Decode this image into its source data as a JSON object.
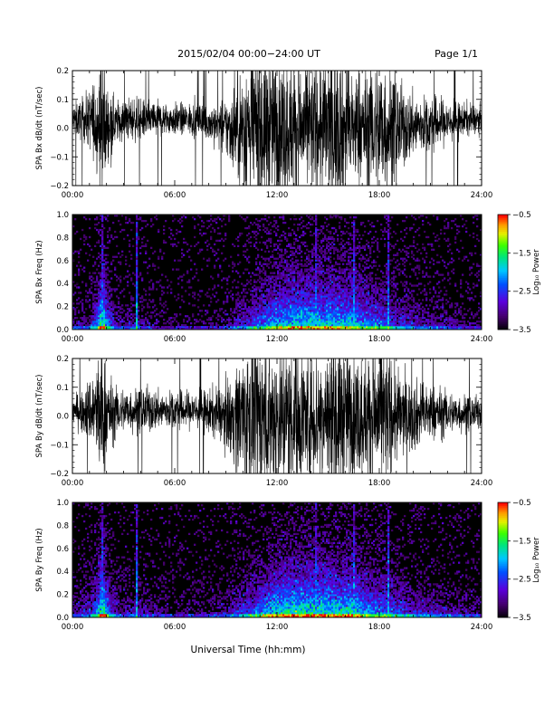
{
  "header": {
    "title": "2015/02/04  00:00−24:00 UT",
    "page": "Page 1/1"
  },
  "xaxis_title": "Universal Time (hh:mm)",
  "chart_data": [
    {
      "type": "line",
      "ylabel": "SPA Bx dB/dt (nT/sec)",
      "xlim": [
        0,
        24
      ],
      "ylim": [
        -0.2,
        0.2
      ],
      "xticks": [
        "00:00",
        "06:00",
        "12:00",
        "18:00",
        "24:00"
      ],
      "yticks": [
        "0.2",
        "0.1",
        "0.0",
        "−0.1",
        "−0.2"
      ],
      "ytick_values": [
        0.2,
        0.1,
        0.0,
        -0.1,
        -0.2
      ],
      "x": [
        0,
        0.5,
        1,
        1.5,
        1.75,
        2,
        2.5,
        3,
        3.5,
        4,
        4.5,
        5,
        5.5,
        6,
        6.5,
        7,
        7.5,
        8,
        8.5,
        9,
        9.5,
        10,
        10.5,
        11,
        11.5,
        12,
        12.5,
        13,
        13.5,
        14,
        14.5,
        15,
        15.5,
        16,
        16.5,
        17,
        17.5,
        18,
        18.5,
        19,
        19.5,
        20,
        20.5,
        21,
        21.5,
        22,
        22.5,
        23,
        23.5,
        24
      ],
      "amplitude": [
        0.05,
        0.06,
        0.09,
        0.16,
        0.25,
        0.13,
        0.07,
        0.06,
        0.07,
        0.06,
        0.06,
        0.06,
        0.05,
        0.05,
        0.05,
        0.05,
        0.06,
        0.06,
        0.07,
        0.09,
        0.14,
        0.2,
        0.25,
        0.25,
        0.24,
        0.22,
        0.22,
        0.22,
        0.21,
        0.2,
        0.21,
        0.24,
        0.25,
        0.22,
        0.18,
        0.18,
        0.2,
        0.24,
        0.2,
        0.15,
        0.12,
        0.1,
        0.09,
        0.09,
        0.08,
        0.07,
        0.06,
        0.05,
        0.05,
        0.04
      ],
      "offset": [
        0.03,
        0.03,
        0.03,
        0.02,
        0.0,
        0.01,
        0.02,
        0.03,
        0.03,
        0.03,
        0.03,
        0.03,
        0.03,
        0.03,
        0.03,
        0.03,
        0.03,
        0.02,
        0.01,
        0.0,
        0.0,
        0.0,
        0.0,
        0.0,
        0.0,
        0.0,
        0.0,
        0.0,
        0.0,
        0.0,
        0.0,
        0.0,
        0.0,
        0.0,
        0.0,
        0.0,
        0.0,
        0.0,
        0.0,
        0.0,
        0.0,
        0.01,
        0.01,
        0.01,
        0.02,
        0.02,
        0.02,
        0.03,
        0.03,
        0.03
      ]
    },
    {
      "type": "heatmap",
      "ylabel": "SPA Bx Freq (Hz)",
      "xlim": [
        0,
        24
      ],
      "ylim": [
        0,
        1.0
      ],
      "xticks": [
        "00:00",
        "06:00",
        "12:00",
        "18:00",
        "24:00"
      ],
      "yticks": [
        "1.0",
        "0.8",
        "0.6",
        "0.4",
        "0.2",
        "0.0"
      ],
      "ytick_values": [
        1.0,
        0.8,
        0.6,
        0.4,
        0.2,
        0.0
      ],
      "colorbar": {
        "label": "Log₁₀ Power",
        "range": [
          -3.5,
          -0.5
        ],
        "ticks": [
          "−0.5",
          "−1.5",
          "−2.5",
          "−3.5"
        ],
        "tick_values": [
          -0.5,
          -1.5,
          -2.5,
          -3.5
        ]
      },
      "activity_x": [
        0,
        1,
        1.5,
        1.75,
        2,
        2.5,
        3,
        3.5,
        4,
        5,
        6,
        7,
        8,
        9,
        10,
        11,
        12,
        13,
        14,
        15,
        16,
        16.5,
        17,
        18,
        19,
        20,
        21,
        22,
        23,
        24
      ],
      "activity": [
        0.2,
        0.3,
        0.6,
        1.0,
        0.6,
        0.3,
        0.2,
        0.3,
        0.25,
        0.15,
        0.1,
        0.1,
        0.15,
        0.2,
        0.4,
        0.55,
        0.7,
        0.75,
        0.75,
        0.75,
        0.7,
        0.75,
        0.6,
        0.55,
        0.45,
        0.35,
        0.3,
        0.25,
        0.2,
        0.15
      ],
      "spikes": [
        1.75,
        3.75,
        14.25,
        16.5,
        18.5
      ]
    },
    {
      "type": "line",
      "ylabel": "SPA By dB/dt (nT/sec)",
      "xlim": [
        0,
        24
      ],
      "ylim": [
        -0.2,
        0.2
      ],
      "xticks": [
        "00:00",
        "06:00",
        "12:00",
        "18:00",
        "24:00"
      ],
      "yticks": [
        "0.2",
        "0.1",
        "0.0",
        "−0.1",
        "−0.2"
      ],
      "ytick_values": [
        0.2,
        0.1,
        0.0,
        -0.1,
        -0.2
      ],
      "x": [
        0,
        0.5,
        1,
        1.5,
        1.75,
        2,
        2.5,
        3,
        3.5,
        4,
        4.5,
        5,
        5.5,
        6,
        6.5,
        7,
        7.5,
        8,
        8.5,
        9,
        9.5,
        10,
        10.5,
        11,
        11.5,
        12,
        12.5,
        13,
        13.5,
        14,
        14.5,
        15,
        15.5,
        16,
        16.5,
        17,
        17.5,
        18,
        18.5,
        19,
        19.5,
        20,
        20.5,
        21,
        21.5,
        22,
        22.5,
        23,
        23.5,
        24
      ],
      "amplitude": [
        0.05,
        0.06,
        0.1,
        0.18,
        0.25,
        0.14,
        0.08,
        0.07,
        0.07,
        0.07,
        0.07,
        0.06,
        0.06,
        0.06,
        0.06,
        0.06,
        0.06,
        0.07,
        0.08,
        0.1,
        0.15,
        0.21,
        0.25,
        0.25,
        0.24,
        0.23,
        0.23,
        0.22,
        0.22,
        0.21,
        0.22,
        0.24,
        0.25,
        0.22,
        0.19,
        0.19,
        0.21,
        0.25,
        0.2,
        0.15,
        0.12,
        0.11,
        0.1,
        0.09,
        0.08,
        0.07,
        0.06,
        0.06,
        0.05,
        0.05
      ],
      "offset": [
        0.02,
        0.02,
        0.02,
        0.01,
        0.0,
        0.01,
        0.01,
        0.02,
        0.02,
        0.02,
        0.02,
        0.02,
        0.02,
        0.02,
        0.02,
        0.02,
        0.02,
        0.01,
        0.01,
        0.0,
        0.0,
        0.0,
        0.0,
        0.0,
        0.0,
        0.0,
        0.0,
        0.0,
        0.0,
        0.0,
        0.0,
        0.0,
        0.0,
        0.0,
        0.0,
        0.0,
        0.0,
        0.0,
        0.0,
        0.0,
        0.0,
        0.0,
        0.01,
        0.01,
        0.01,
        0.01,
        0.01,
        0.01,
        0.01,
        0.01
      ]
    },
    {
      "type": "heatmap",
      "ylabel": "SPA By Freq (Hz)",
      "xlim": [
        0,
        24
      ],
      "ylim": [
        0,
        1.0
      ],
      "xticks": [
        "00:00",
        "06:00",
        "12:00",
        "18:00",
        "24:00"
      ],
      "yticks": [
        "1.0",
        "0.8",
        "0.6",
        "0.4",
        "0.2",
        "0.0"
      ],
      "ytick_values": [
        1.0,
        0.8,
        0.6,
        0.4,
        0.2,
        0.0
      ],
      "colorbar": {
        "label": "Log₁₀ Power",
        "range": [
          -3.5,
          -0.5
        ],
        "ticks": [
          "−0.5",
          "−1.5",
          "−2.5",
          "−3.5"
        ],
        "tick_values": [
          -0.5,
          -1.5,
          -2.5,
          -3.5
        ]
      },
      "activity_x": [
        0,
        1,
        1.5,
        1.75,
        2,
        2.5,
        3,
        3.5,
        4,
        5,
        6,
        7,
        8,
        9,
        10,
        11,
        12,
        13,
        14,
        15,
        16,
        16.5,
        17,
        18,
        19,
        20,
        21,
        22,
        23,
        24
      ],
      "activity": [
        0.25,
        0.35,
        0.65,
        1.0,
        0.65,
        0.35,
        0.25,
        0.3,
        0.3,
        0.2,
        0.15,
        0.15,
        0.2,
        0.25,
        0.45,
        0.6,
        0.75,
        0.8,
        0.8,
        0.8,
        0.75,
        0.8,
        0.65,
        0.6,
        0.5,
        0.4,
        0.35,
        0.3,
        0.25,
        0.2
      ],
      "spikes": [
        1.75,
        3.75,
        14.25,
        16.5,
        18.5
      ]
    }
  ]
}
